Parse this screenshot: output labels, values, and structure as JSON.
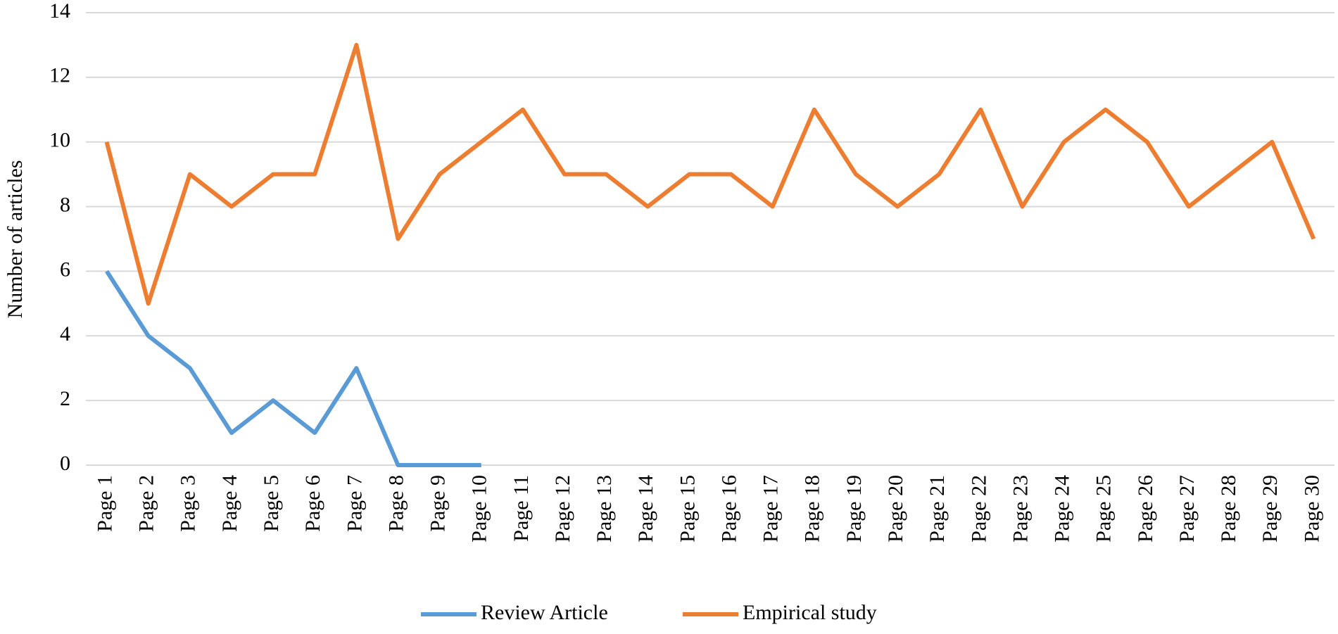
{
  "chart_data": {
    "type": "line",
    "y_label": "Number of articles",
    "categories": [
      "Page 1",
      "Page 2",
      "Page 3",
      "Page 4",
      "Page 5",
      "Page 6",
      "Page 7",
      "Page 8",
      "Page 9",
      "Page 10",
      "Page 11",
      "Page 12",
      "Page 13",
      "Page 14",
      "Page 15",
      "Page 16",
      "Page 17",
      "Page 18",
      "Page 19",
      "Page 20",
      "Page 21",
      "Page 22",
      "Page 23",
      "Page 24",
      "Page 25",
      "Page 26",
      "Page 27",
      "Page 28",
      "Page 29",
      "Page 30"
    ],
    "series": [
      {
        "name": "Review Article",
        "color": "#5b9bd5",
        "values": [
          6,
          4,
          3,
          1,
          2,
          1,
          3,
          0,
          0,
          0,
          null,
          null,
          null,
          null,
          null,
          null,
          null,
          null,
          null,
          null,
          null,
          null,
          null,
          null,
          null,
          null,
          null,
          null,
          null,
          null
        ]
      },
      {
        "name": "Empirical study",
        "color": "#ed7d31",
        "values": [
          10,
          5,
          9,
          8,
          9,
          9,
          13,
          7,
          9,
          10,
          11,
          9,
          9,
          8,
          9,
          9,
          8,
          11,
          9,
          8,
          9,
          11,
          8,
          10,
          11,
          10,
          8,
          9,
          10,
          7
        ]
      }
    ],
    "ylim": [
      0,
      14
    ],
    "yticks": [
      0,
      2,
      4,
      6,
      8,
      10,
      12,
      14
    ],
    "grid": true,
    "legend": "bottom"
  }
}
